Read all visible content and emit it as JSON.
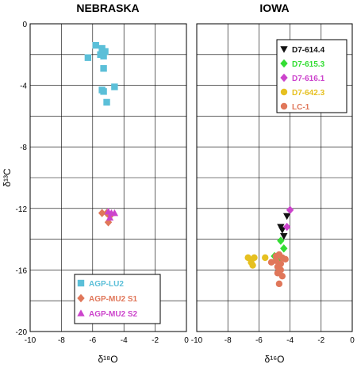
{
  "chart_data": [
    {
      "type": "scatter",
      "title": "NEBRASKA",
      "xlabel": "δ¹⁸O",
      "ylabel": "δ¹³C",
      "xlim": [
        -10,
        0
      ],
      "ylim": [
        -20,
        0
      ],
      "x_ticks": [
        "-10",
        "-8",
        "-6",
        "-4",
        "-2",
        "0"
      ],
      "y_ticks": [
        "0",
        "-4",
        "-8",
        "-12",
        "-16",
        "-20"
      ],
      "grid": true,
      "legend": "bottom-center",
      "series": [
        {
          "name": "AGP-LU2",
          "marker": "square",
          "color": "#5bbfd8",
          "points": [
            [
              -6.3,
              -2.2
            ],
            [
              -5.8,
              -1.4
            ],
            [
              -5.5,
              -2.0
            ],
            [
              -5.4,
              -1.6
            ],
            [
              -5.2,
              -1.8
            ],
            [
              -5.3,
              -2.1
            ],
            [
              -5.3,
              -2.9
            ],
            [
              -4.6,
              -4.1
            ],
            [
              -5.4,
              -4.3
            ],
            [
              -5.3,
              -4.4
            ],
            [
              -5.1,
              -5.1
            ]
          ]
        },
        {
          "name": "AGP-MU2 S1",
          "marker": "diamond",
          "color": "#e0775a",
          "points": [
            [
              -5.4,
              -12.3
            ],
            [
              -5.1,
              -12.3
            ],
            [
              -5.0,
              -12.9
            ],
            [
              -4.9,
              -12.5
            ]
          ]
        },
        {
          "name": "AGP-MU2 S2",
          "marker": "triangle",
          "color": "#cc44cc",
          "points": [
            [
              -5.0,
              -12.2
            ],
            [
              -4.8,
              -12.3
            ],
            [
              -4.6,
              -12.3
            ],
            [
              -4.9,
              -12.6
            ]
          ]
        }
      ]
    },
    {
      "type": "scatter",
      "title": "IOWA",
      "xlabel": "δ¹⁶O",
      "ylabel": "",
      "xlim": [
        -10,
        0
      ],
      "ylim": [
        -20,
        0
      ],
      "x_ticks": [
        "-10",
        "-8",
        "-6",
        "-4",
        "-2",
        "0"
      ],
      "y_ticks": [
        "0",
        "-4",
        "-8",
        "-12",
        "-16",
        "-20"
      ],
      "grid": true,
      "legend": "top-right",
      "series": [
        {
          "name": "D7-614.4",
          "marker": "triangle-down",
          "color": "#111111",
          "points": [
            [
              -4.2,
              -12.5
            ],
            [
              -4.6,
              -13.2
            ],
            [
              -4.5,
              -13.4
            ],
            [
              -4.4,
              -13.8
            ]
          ]
        },
        {
          "name": "D7-615.3",
          "marker": "diamond",
          "color": "#33dd33",
          "points": [
            [
              -4.6,
              -14.1
            ],
            [
              -4.4,
              -14.6
            ],
            [
              -5.0,
              -15.1
            ],
            [
              -4.8,
              -15.4
            ]
          ]
        },
        {
          "name": "D7-616.1",
          "marker": "diamond",
          "color": "#cc44cc",
          "points": [
            [
              -4.0,
              -12.1
            ],
            [
              -4.2,
              -13.2
            ]
          ]
        },
        {
          "name": "D7-642.3",
          "marker": "circle",
          "color": "#e6c020",
          "points": [
            [
              -6.7,
              -15.2
            ],
            [
              -6.5,
              -15.5
            ],
            [
              -6.3,
              -15.2
            ],
            [
              -6.4,
              -15.7
            ],
            [
              -5.6,
              -15.2
            ]
          ]
        },
        {
          "name": "LC-1",
          "marker": "circle",
          "color": "#e0775a",
          "points": [
            [
              -4.9,
              -15.1
            ],
            [
              -4.7,
              -15.0
            ],
            [
              -4.5,
              -15.2
            ],
            [
              -4.3,
              -15.3
            ],
            [
              -4.6,
              -15.6
            ],
            [
              -4.8,
              -15.8
            ],
            [
              -5.2,
              -15.5
            ],
            [
              -4.6,
              -16.0
            ],
            [
              -4.8,
              -16.2
            ],
            [
              -4.5,
              -16.4
            ],
            [
              -4.7,
              -16.9
            ],
            [
              -4.9,
              -15.4
            ]
          ]
        }
      ]
    }
  ]
}
